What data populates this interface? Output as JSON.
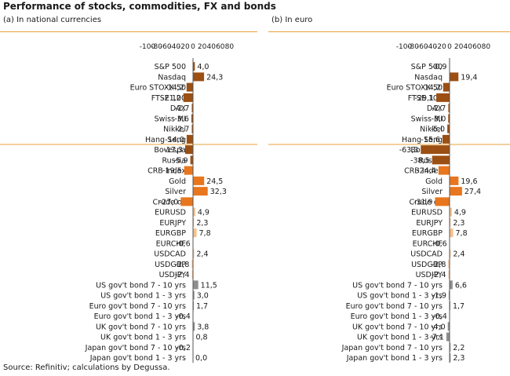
{
  "title": "Performance of stocks, commodities, FX and bonds",
  "source": "Source: Refinitiv; calculations by Degussa.",
  "colors": {
    "stocks": "#9b4f13",
    "commodities": "#e8761e",
    "fx": "#f6c08c",
    "bonds": "#8e8e8e",
    "rule": "#e8a23c"
  },
  "chart_data": [
    {
      "type": "bar",
      "orientation": "horizontal",
      "title": "(a) In national currencies",
      "xlim": [
        -100,
        80
      ],
      "xticks": [
        "-100",
        "-80",
        "-60",
        "-40",
        "-20",
        "0",
        "20",
        "40",
        "60",
        "80"
      ],
      "categories": [
        "S&P 500",
        "Nasdaq",
        "Euro STOXX 50",
        "FTSE 100",
        "DAX",
        "Swiss MI",
        "Nikkei",
        "Hang Seng",
        "Bovespa",
        "Russia",
        "CRB Index",
        "Gold",
        "Silver",
        "Crude oil",
        "EURUSD",
        "EURJPY",
        "EURGBP",
        "EURCHF",
        "USDCAD",
        "USDGBP",
        "USDJPY",
        "US gov't bond 7 - 10 yrs",
        "US gov't bond 1 - 3 yrs",
        "Euro gov't bond 7 - 10 yrs",
        "Euro gov't bond 1 - 3 yrs",
        "UK gov't bond 7 - 10 yrs",
        "UK gov't bond 1 - 3 yrs",
        "Japan gov't bond 7 - 10 yrs",
        "Japan gov't bond 1 - 3 yrs"
      ],
      "groups": [
        "stocks",
        "stocks",
        "stocks",
        "stocks",
        "stocks",
        "stocks",
        "stocks",
        "stocks",
        "stocks",
        "stocks",
        "commodities",
        "commodities",
        "commodities",
        "commodities",
        "fx",
        "fx",
        "fx",
        "fx",
        "fx",
        "fx",
        "fx",
        "bonds",
        "bonds",
        "bonds",
        "bonds",
        "bonds",
        "bonds",
        "bonds",
        "bonds"
      ],
      "values": [
        4.0,
        24.3,
        -14.2,
        -21.2,
        -2.7,
        -3.6,
        -2.7,
        -14.0,
        -17.3,
        -5.9,
        -19.5,
        24.5,
        32.3,
        -27.0,
        4.9,
        2.3,
        7.8,
        -0.6,
        2.4,
        -2.8,
        -2.4,
        11.5,
        3.0,
        1.7,
        -0.4,
        3.8,
        0.8,
        -0.2,
        0.0
      ],
      "labels": [
        "4,0",
        "24,3",
        "-14,2",
        "-21,2",
        "-2,7",
        "-3,6",
        "-2,7",
        "-14,0",
        "-17,3",
        "-5,9",
        "-19,5",
        "24,5",
        "32,3",
        "-27,0",
        "4,9",
        "2,3",
        "7,8",
        "-0,6",
        "2,4",
        "-2,8",
        "-2,4",
        "11,5",
        "3,0",
        "1,7",
        "-0,4",
        "3,8",
        "0,8",
        "-0,2",
        "0,0"
      ]
    },
    {
      "type": "bar",
      "orientation": "horizontal",
      "title": "(b) In euro",
      "xlim": [
        -100,
        80
      ],
      "xticks": [
        "-100",
        "-80",
        "-60",
        "-40",
        "-20",
        "0",
        "20",
        "40",
        "60",
        "80"
      ],
      "categories": [
        "S&P 500",
        "Nasdaq",
        "Euro STOXX 50",
        "FTSE 100",
        "DAX",
        "Swiss MI",
        "Nikkei",
        "Hang Seng",
        "Bovespa",
        "Russia",
        "CRB Index",
        "Gold",
        "Silver",
        "Crude oil",
        "EURUSD",
        "EURJPY",
        "EURGBP",
        "EURCHF",
        "USDCAD",
        "USDGBP",
        "USDJPY",
        "US gov't bond 7 - 10 yrs",
        "US gov't bond 1 - 3 yrs",
        "Euro gov't bond 7 - 10 yrs",
        "Euro gov't bond 1 - 3 yrs",
        "UK gov't bond 7 - 10 yrs",
        "UK gov't bond 1 - 3 yrs",
        "Japan gov't bond 7 - 10 yrs",
        "Japan gov't bond 1 - 3 yrs"
      ],
      "groups": [
        "stocks",
        "stocks",
        "stocks",
        "stocks",
        "stocks",
        "stocks",
        "stocks",
        "stocks",
        "stocks",
        "stocks",
        "commodities",
        "commodities",
        "commodities",
        "commodities",
        "fx",
        "fx",
        "fx",
        "fx",
        "fx",
        "fx",
        "fx",
        "bonds",
        "bonds",
        "bonds",
        "bonds",
        "bonds",
        "bonds",
        "bonds",
        "bonds"
      ],
      "values": [
        -0.9,
        19.4,
        -14.2,
        -29.1,
        -2.7,
        -3.0,
        -5.0,
        -15.6,
        -63.3,
        -38.5,
        -24.4,
        19.6,
        27.4,
        -31.9,
        4.9,
        2.3,
        7.8,
        -0.6,
        2.4,
        -2.8,
        -2.4,
        6.6,
        -1.9,
        1.7,
        -0.4,
        -4.0,
        -7.1,
        2.2,
        2.3
      ],
      "labels": [
        "-0,9",
        "19,4",
        "-14,2",
        "-29,1",
        "-2,7",
        "-3,0",
        "-5,0",
        "-15,6",
        "-63,3",
        "-38,5",
        "-24,4",
        "19,6",
        "27,4",
        "-31,9",
        "4,9",
        "2,3",
        "7,8",
        "-0,6",
        "2,4",
        "-2,8",
        "-2,4",
        "6,6",
        "-1,9",
        "1,7",
        "-0,4",
        "-4,0",
        "-7,1",
        "2,2",
        "2,3"
      ]
    }
  ]
}
